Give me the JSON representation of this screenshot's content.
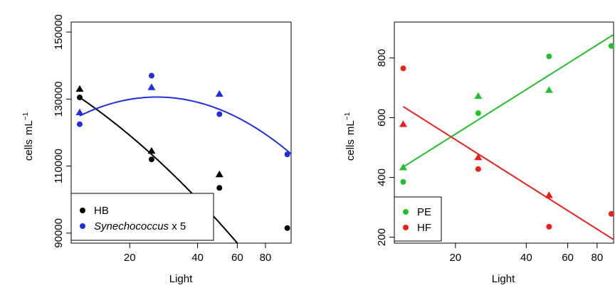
{
  "chart_data": [
    {
      "type": "scatter",
      "xlabel": "Light",
      "ylabel": "cells",
      "ylabel_unit": "mL",
      "ylabel_exponent": "−1",
      "x_scale": "log",
      "xlim": [
        11,
        104
      ],
      "ylim": [
        87000,
        153000
      ],
      "xticks": [
        20,
        40,
        60,
        80
      ],
      "yticks": [
        90000,
        110000,
        130000,
        150000
      ],
      "legend_position": "bottom-left",
      "series": [
        {
          "name": "HB",
          "color": "#000000",
          "points": [
            {
              "x": 12,
              "y": 130500,
              "marker": "circle"
            },
            {
              "x": 12,
              "y": 133000,
              "marker": "triangle"
            },
            {
              "x": 25,
              "y": 112000,
              "marker": "circle"
            },
            {
              "x": 25,
              "y": 114500,
              "marker": "triangle"
            },
            {
              "x": 50,
              "y": 103500,
              "marker": "circle"
            },
            {
              "x": 50,
              "y": 107500,
              "marker": "triangle"
            },
            {
              "x": 100,
              "y": 91500,
              "marker": "circle"
            }
          ],
          "fit": {
            "type": "polynomial_log",
            "coefficients": [
              130500,
              -19920,
              -4410
            ],
            "x_ref": 12
          }
        },
        {
          "name": "Synechococcus x 5",
          "name_italic": "Synechococcus",
          "name_suffix": " x 5",
          "color": "#1f2fdb",
          "points": [
            {
              "x": 12,
              "y": 122500,
              "marker": "circle"
            },
            {
              "x": 12,
              "y": 126000,
              "marker": "triangle"
            },
            {
              "x": 25,
              "y": 137000,
              "marker": "circle"
            },
            {
              "x": 25,
              "y": 133500,
              "marker": "triangle"
            },
            {
              "x": 50,
              "y": 125500,
              "marker": "circle"
            },
            {
              "x": 50,
              "y": 131500,
              "marker": "triangle"
            },
            {
              "x": 100,
              "y": 113500,
              "marker": "circle"
            }
          ],
          "fit": {
            "type": "polynomial_log",
            "coefficients": [
              125000,
              14240,
              -9030
            ],
            "x_ref": 12
          }
        }
      ]
    },
    {
      "type": "scatter",
      "xlabel": "Light",
      "ylabel": "cells",
      "ylabel_unit": "mL",
      "ylabel_exponent": "−1",
      "x_scale": "log",
      "xlim": [
        11,
        94
      ],
      "ylim": [
        180,
        920
      ],
      "xticks": [
        20,
        40,
        60,
        80
      ],
      "yticks": [
        200,
        400,
        600,
        800
      ],
      "legend_position": "bottom-left",
      "series": [
        {
          "name": "PE",
          "color": "#22c02a",
          "points": [
            {
              "x": 12,
              "y": 385,
              "marker": "circle"
            },
            {
              "x": 12,
              "y": 433,
              "marker": "triangle"
            },
            {
              "x": 25,
              "y": 615,
              "marker": "circle"
            },
            {
              "x": 25,
              "y": 672,
              "marker": "triangle"
            },
            {
              "x": 50,
              "y": 805,
              "marker": "circle"
            },
            {
              "x": 50,
              "y": 692,
              "marker": "triangle"
            },
            {
              "x": 92,
              "y": 840,
              "marker": "circle"
            }
          ],
          "fit": {
            "type": "linear_log",
            "x0": 12,
            "y0": 435,
            "x1": 94,
            "y1": 878
          }
        },
        {
          "name": "HF",
          "color": "#e8211b",
          "points": [
            {
              "x": 12,
              "y": 765,
              "marker": "circle"
            },
            {
              "x": 12,
              "y": 578,
              "marker": "triangle"
            },
            {
              "x": 25,
              "y": 428,
              "marker": "circle"
            },
            {
              "x": 25,
              "y": 467,
              "marker": "triangle"
            },
            {
              "x": 50,
              "y": 235,
              "marker": "circle"
            },
            {
              "x": 50,
              "y": 340,
              "marker": "triangle"
            },
            {
              "x": 92,
              "y": 278,
              "marker": "circle"
            }
          ],
          "fit": {
            "type": "linear_log",
            "x0": 12,
            "y0": 637,
            "x1": 94,
            "y1": 192
          }
        }
      ]
    }
  ]
}
